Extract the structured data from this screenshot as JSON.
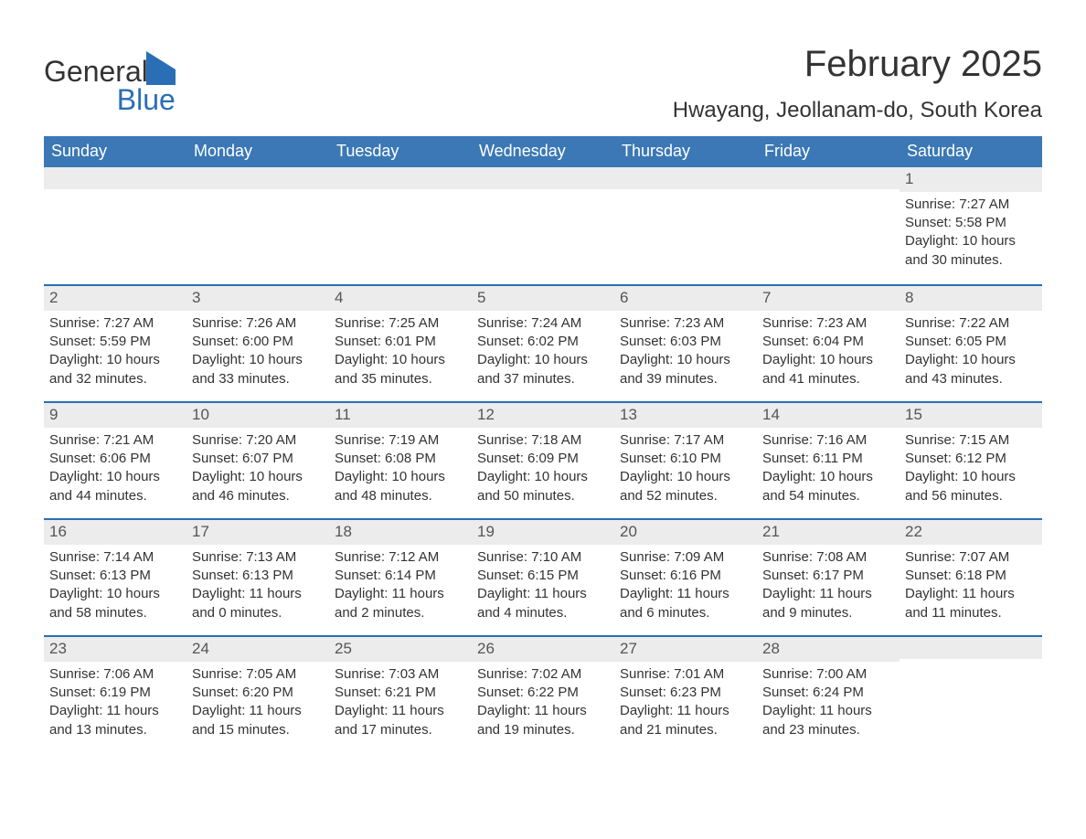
{
  "logo": {
    "part1": "General",
    "part2": "Blue"
  },
  "title": "February 2025",
  "location": "Hwayang, Jeollanam-do, South Korea",
  "colors": {
    "header_bg": "#3b78b5",
    "week_divider": "#2a6fb5",
    "daynum_bg": "#ececec",
    "text": "#333333",
    "logo_accent": "#2a6fb5",
    "background": "#ffffff"
  },
  "layout": {
    "columns": 7,
    "rows": 5,
    "font_family": "Arial",
    "title_fontsize": 40,
    "location_fontsize": 24,
    "dow_fontsize": 18,
    "body_fontsize": 15
  },
  "days_of_week": [
    "Sunday",
    "Monday",
    "Tuesday",
    "Wednesday",
    "Thursday",
    "Friday",
    "Saturday"
  ],
  "weeks": [
    [
      {
        "n": "",
        "sunrise": "",
        "sunset": "",
        "daylight": ""
      },
      {
        "n": "",
        "sunrise": "",
        "sunset": "",
        "daylight": ""
      },
      {
        "n": "",
        "sunrise": "",
        "sunset": "",
        "daylight": ""
      },
      {
        "n": "",
        "sunrise": "",
        "sunset": "",
        "daylight": ""
      },
      {
        "n": "",
        "sunrise": "",
        "sunset": "",
        "daylight": ""
      },
      {
        "n": "",
        "sunrise": "",
        "sunset": "",
        "daylight": ""
      },
      {
        "n": "1",
        "sunrise": "Sunrise: 7:27 AM",
        "sunset": "Sunset: 5:58 PM",
        "daylight": "Daylight: 10 hours and 30 minutes."
      }
    ],
    [
      {
        "n": "2",
        "sunrise": "Sunrise: 7:27 AM",
        "sunset": "Sunset: 5:59 PM",
        "daylight": "Daylight: 10 hours and 32 minutes."
      },
      {
        "n": "3",
        "sunrise": "Sunrise: 7:26 AM",
        "sunset": "Sunset: 6:00 PM",
        "daylight": "Daylight: 10 hours and 33 minutes."
      },
      {
        "n": "4",
        "sunrise": "Sunrise: 7:25 AM",
        "sunset": "Sunset: 6:01 PM",
        "daylight": "Daylight: 10 hours and 35 minutes."
      },
      {
        "n": "5",
        "sunrise": "Sunrise: 7:24 AM",
        "sunset": "Sunset: 6:02 PM",
        "daylight": "Daylight: 10 hours and 37 minutes."
      },
      {
        "n": "6",
        "sunrise": "Sunrise: 7:23 AM",
        "sunset": "Sunset: 6:03 PM",
        "daylight": "Daylight: 10 hours and 39 minutes."
      },
      {
        "n": "7",
        "sunrise": "Sunrise: 7:23 AM",
        "sunset": "Sunset: 6:04 PM",
        "daylight": "Daylight: 10 hours and 41 minutes."
      },
      {
        "n": "8",
        "sunrise": "Sunrise: 7:22 AM",
        "sunset": "Sunset: 6:05 PM",
        "daylight": "Daylight: 10 hours and 43 minutes."
      }
    ],
    [
      {
        "n": "9",
        "sunrise": "Sunrise: 7:21 AM",
        "sunset": "Sunset: 6:06 PM",
        "daylight": "Daylight: 10 hours and 44 minutes."
      },
      {
        "n": "10",
        "sunrise": "Sunrise: 7:20 AM",
        "sunset": "Sunset: 6:07 PM",
        "daylight": "Daylight: 10 hours and 46 minutes."
      },
      {
        "n": "11",
        "sunrise": "Sunrise: 7:19 AM",
        "sunset": "Sunset: 6:08 PM",
        "daylight": "Daylight: 10 hours and 48 minutes."
      },
      {
        "n": "12",
        "sunrise": "Sunrise: 7:18 AM",
        "sunset": "Sunset: 6:09 PM",
        "daylight": "Daylight: 10 hours and 50 minutes."
      },
      {
        "n": "13",
        "sunrise": "Sunrise: 7:17 AM",
        "sunset": "Sunset: 6:10 PM",
        "daylight": "Daylight: 10 hours and 52 minutes."
      },
      {
        "n": "14",
        "sunrise": "Sunrise: 7:16 AM",
        "sunset": "Sunset: 6:11 PM",
        "daylight": "Daylight: 10 hours and 54 minutes."
      },
      {
        "n": "15",
        "sunrise": "Sunrise: 7:15 AM",
        "sunset": "Sunset: 6:12 PM",
        "daylight": "Daylight: 10 hours and 56 minutes."
      }
    ],
    [
      {
        "n": "16",
        "sunrise": "Sunrise: 7:14 AM",
        "sunset": "Sunset: 6:13 PM",
        "daylight": "Daylight: 10 hours and 58 minutes."
      },
      {
        "n": "17",
        "sunrise": "Sunrise: 7:13 AM",
        "sunset": "Sunset: 6:13 PM",
        "daylight": "Daylight: 11 hours and 0 minutes."
      },
      {
        "n": "18",
        "sunrise": "Sunrise: 7:12 AM",
        "sunset": "Sunset: 6:14 PM",
        "daylight": "Daylight: 11 hours and 2 minutes."
      },
      {
        "n": "19",
        "sunrise": "Sunrise: 7:10 AM",
        "sunset": "Sunset: 6:15 PM",
        "daylight": "Daylight: 11 hours and 4 minutes."
      },
      {
        "n": "20",
        "sunrise": "Sunrise: 7:09 AM",
        "sunset": "Sunset: 6:16 PM",
        "daylight": "Daylight: 11 hours and 6 minutes."
      },
      {
        "n": "21",
        "sunrise": "Sunrise: 7:08 AM",
        "sunset": "Sunset: 6:17 PM",
        "daylight": "Daylight: 11 hours and 9 minutes."
      },
      {
        "n": "22",
        "sunrise": "Sunrise: 7:07 AM",
        "sunset": "Sunset: 6:18 PM",
        "daylight": "Daylight: 11 hours and 11 minutes."
      }
    ],
    [
      {
        "n": "23",
        "sunrise": "Sunrise: 7:06 AM",
        "sunset": "Sunset: 6:19 PM",
        "daylight": "Daylight: 11 hours and 13 minutes."
      },
      {
        "n": "24",
        "sunrise": "Sunrise: 7:05 AM",
        "sunset": "Sunset: 6:20 PM",
        "daylight": "Daylight: 11 hours and 15 minutes."
      },
      {
        "n": "25",
        "sunrise": "Sunrise: 7:03 AM",
        "sunset": "Sunset: 6:21 PM",
        "daylight": "Daylight: 11 hours and 17 minutes."
      },
      {
        "n": "26",
        "sunrise": "Sunrise: 7:02 AM",
        "sunset": "Sunset: 6:22 PM",
        "daylight": "Daylight: 11 hours and 19 minutes."
      },
      {
        "n": "27",
        "sunrise": "Sunrise: 7:01 AM",
        "sunset": "Sunset: 6:23 PM",
        "daylight": "Daylight: 11 hours and 21 minutes."
      },
      {
        "n": "28",
        "sunrise": "Sunrise: 7:00 AM",
        "sunset": "Sunset: 6:24 PM",
        "daylight": "Daylight: 11 hours and 23 minutes."
      },
      {
        "n": "",
        "sunrise": "",
        "sunset": "",
        "daylight": ""
      }
    ]
  ]
}
